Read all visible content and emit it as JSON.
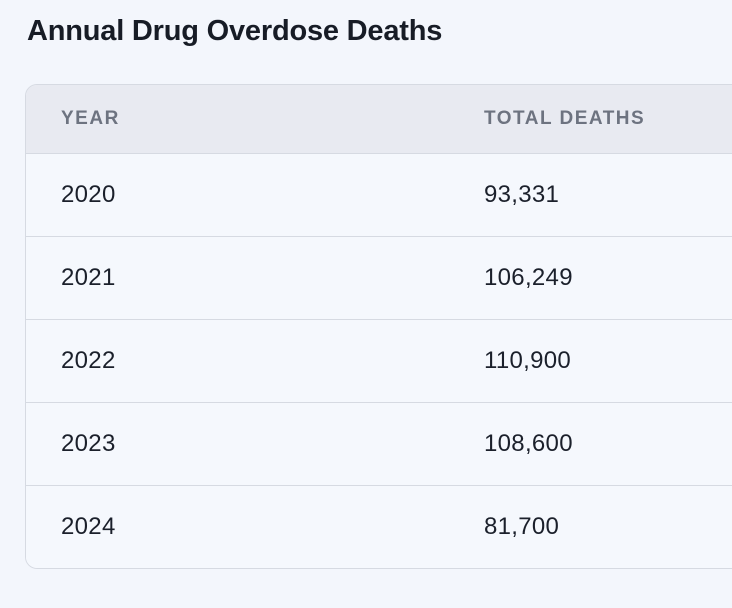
{
  "title": "Annual Drug Overdose Deaths",
  "table": {
    "columns": [
      "YEAR",
      "TOTAL DEATHS"
    ],
    "rows": [
      {
        "year": "2020",
        "total_deaths": "93,331"
      },
      {
        "year": "2021",
        "total_deaths": "106,249"
      },
      {
        "year": "2022",
        "total_deaths": "110,900"
      },
      {
        "year": "2023",
        "total_deaths": "108,600"
      },
      {
        "year": "2024",
        "total_deaths": "81,700"
      }
    ]
  },
  "colors": {
    "page_bg": "#f3f6fc",
    "card_border": "#d6dae2",
    "header_bg": "#e8eaf1",
    "row_bg": "#f5f8fd",
    "divider": "#d6dae2",
    "title_text": "#171c26",
    "header_text": "#6d7380",
    "cell_text": "#1b202b"
  },
  "chart_data": {
    "type": "table",
    "title": "Annual Drug Overdose Deaths",
    "columns": [
      "YEAR",
      "TOTAL DEATHS"
    ],
    "categories": [
      "2020",
      "2021",
      "2022",
      "2023",
      "2024"
    ],
    "values": [
      93331,
      106249,
      110900,
      108600,
      81700
    ]
  }
}
